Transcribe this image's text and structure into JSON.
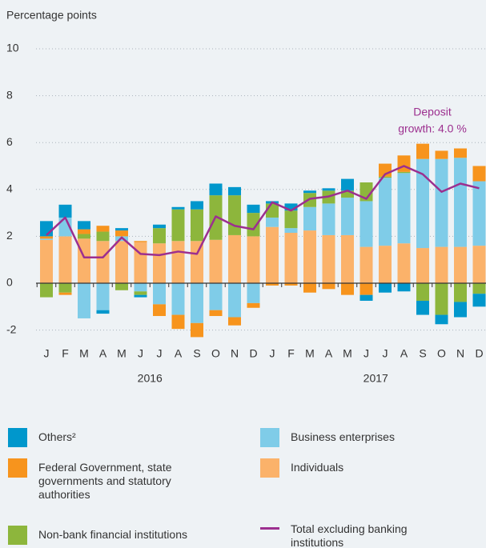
{
  "chart_data": {
    "type": "bar",
    "stacked": true,
    "y_label": "Percentage points",
    "categories": [
      "J",
      "F",
      "M",
      "A",
      "M",
      "J",
      "J",
      "A",
      "S",
      "O",
      "N",
      "D",
      "J",
      "F",
      "M",
      "A",
      "M",
      "J",
      "J",
      "A",
      "S",
      "O",
      "N",
      "D"
    ],
    "x_groups": [
      {
        "label": "2016",
        "from": 0,
        "to": 11
      },
      {
        "label": "2017",
        "from": 12,
        "to": 23
      }
    ],
    "ylim": [
      -2.6,
      10.3
    ],
    "yticks": [
      -2,
      0,
      2,
      4,
      6,
      8,
      10
    ],
    "grid": true,
    "annotation": [
      "Deposit",
      "growth: 4.0 %"
    ],
    "series": [
      {
        "name": "Individuals",
        "color": "#fbb26a",
        "values": [
          1.85,
          2.0,
          1.9,
          1.8,
          1.8,
          1.75,
          1.7,
          1.8,
          1.8,
          1.85,
          2.05,
          2.0,
          2.4,
          2.15,
          2.25,
          2.05,
          2.05,
          1.55,
          1.6,
          1.7,
          1.5,
          1.55,
          1.55,
          1.6
        ]
      },
      {
        "name": "Business enterprises",
        "color": "#7fcce8",
        "values": [
          0.05,
          0.8,
          -1.5,
          -1.15,
          0.2,
          -0.35,
          -0.9,
          -1.35,
          -1.7,
          -1.15,
          -1.45,
          -0.85,
          0.4,
          0.2,
          1.0,
          1.35,
          1.6,
          1.95,
          2.9,
          3.0,
          3.8,
          3.75,
          3.8,
          2.75
        ]
      },
      {
        "name": "Non-bank financial institutions",
        "color": "#8db63c",
        "values": [
          -0.6,
          -0.4,
          0.2,
          0.4,
          -0.3,
          -0.15,
          0.65,
          1.35,
          1.35,
          1.9,
          1.7,
          1.0,
          0.6,
          0.75,
          0.6,
          0.55,
          0.3,
          0.8,
          0.05,
          0.05,
          -0.75,
          -1.35,
          -0.8,
          -0.45
        ]
      },
      {
        "name": "Federal Government, state governments and statutory authorities",
        "color": "#f7941d",
        "values": [
          0.1,
          -0.1,
          0.2,
          0.25,
          0.25,
          0.05,
          -0.5,
          -0.6,
          -0.6,
          -0.25,
          -0.35,
          -0.2,
          -0.1,
          -0.1,
          -0.4,
          -0.25,
          -0.5,
          -0.5,
          0.55,
          0.7,
          0.65,
          0.35,
          0.4,
          0.65
        ]
      },
      {
        "name": "Others²",
        "color": "#0097cc",
        "values": [
          0.65,
          0.55,
          0.35,
          -0.15,
          0.1,
          -0.1,
          0.15,
          0.1,
          0.35,
          0.5,
          0.35,
          0.35,
          0.1,
          0.3,
          0.1,
          0.1,
          0.5,
          -0.25,
          -0.4,
          -0.35,
          -0.6,
          -0.4,
          -0.65,
          -0.55
        ]
      },
      {
        "name": "Total excluding banking institutions",
        "type": "line",
        "color": "#9c2f8f",
        "values": [
          2.05,
          2.8,
          1.1,
          1.1,
          1.95,
          1.25,
          1.2,
          1.35,
          1.25,
          2.85,
          2.45,
          2.3,
          3.45,
          3.1,
          3.6,
          3.7,
          3.95,
          3.6,
          4.65,
          5.0,
          4.65,
          3.9,
          4.25,
          4.05
        ]
      }
    ],
    "legend_order": [
      4,
      1,
      3,
      0,
      2,
      5
    ]
  }
}
